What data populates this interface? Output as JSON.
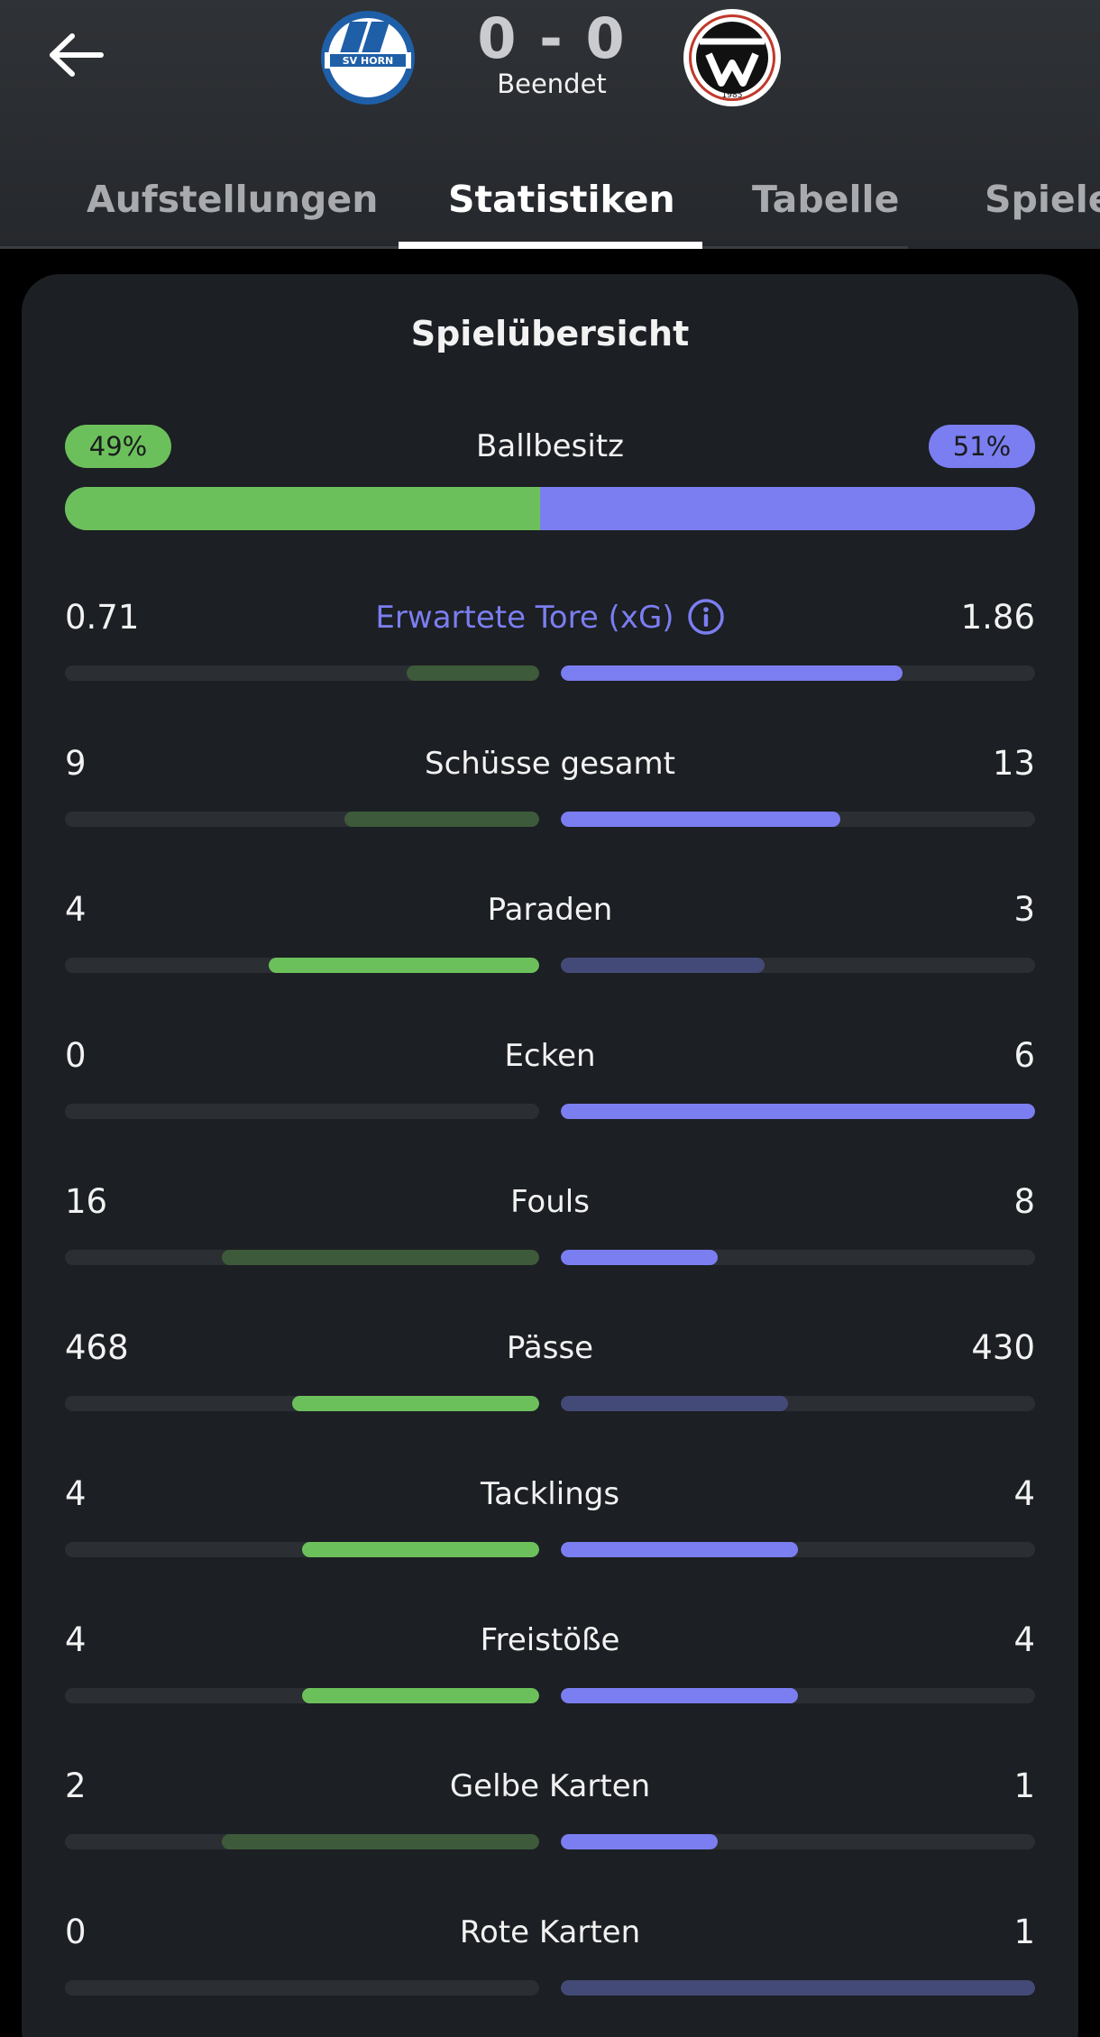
{
  "header": {
    "back_icon": "arrow-left-icon",
    "score": "0 - 0",
    "status": "Beendet",
    "home_crest_text": "SV HORN",
    "away_crest_text": "1985"
  },
  "tabs": [
    {
      "label": "Aufstellungen",
      "active": false
    },
    {
      "label": "Statistiken",
      "active": true
    },
    {
      "label": "Tabelle",
      "active": false
    },
    {
      "label": "Spiele",
      "active": false
    }
  ],
  "colors": {
    "home": "#6cc05b",
    "home_dim": "#3d5a3a",
    "away": "#7b7ef0",
    "away_dim": "#444a77",
    "track": "#2b2e33"
  },
  "overview": {
    "title": "Spielübersicht",
    "possession": {
      "label": "Ballbesitz",
      "home": "49%",
      "away": "51%",
      "home_fraction": 0.49
    },
    "stats": [
      {
        "label": "Erwartete Tore (xG)",
        "home": "0.71",
        "away": "1.86",
        "home_fill": 0.28,
        "away_fill": 0.72,
        "leader": "away",
        "info": true
      },
      {
        "label": "Schüsse gesamt",
        "home": "9",
        "away": "13",
        "home_fill": 0.41,
        "away_fill": 0.59,
        "leader": "away"
      },
      {
        "label": "Paraden",
        "home": "4",
        "away": "3",
        "home_fill": 0.57,
        "away_fill": 0.43,
        "leader": "home"
      },
      {
        "label": "Ecken",
        "home": "0",
        "away": "6",
        "home_fill": 0,
        "away_fill": 1,
        "leader": "away"
      },
      {
        "label": "Fouls",
        "home": "16",
        "away": "8",
        "home_fill": 0.67,
        "away_fill": 0.33,
        "leader": "away"
      },
      {
        "label": "Pässe",
        "home": "468",
        "away": "430",
        "home_fill": 0.52,
        "away_fill": 0.48,
        "leader": "home"
      },
      {
        "label": "Tacklings",
        "home": "4",
        "away": "4",
        "home_fill": 0.5,
        "away_fill": 0.5,
        "leader": "both"
      },
      {
        "label": "Freistöße",
        "home": "4",
        "away": "4",
        "home_fill": 0.5,
        "away_fill": 0.5,
        "leader": "both"
      },
      {
        "label": "Gelbe Karten",
        "home": "2",
        "away": "1",
        "home_fill": 0.67,
        "away_fill": 0.33,
        "leader": "away"
      },
      {
        "label": "Rote Karten",
        "home": "0",
        "away": "1",
        "home_fill": 0,
        "away_fill": 1,
        "leader": "home"
      }
    ]
  }
}
